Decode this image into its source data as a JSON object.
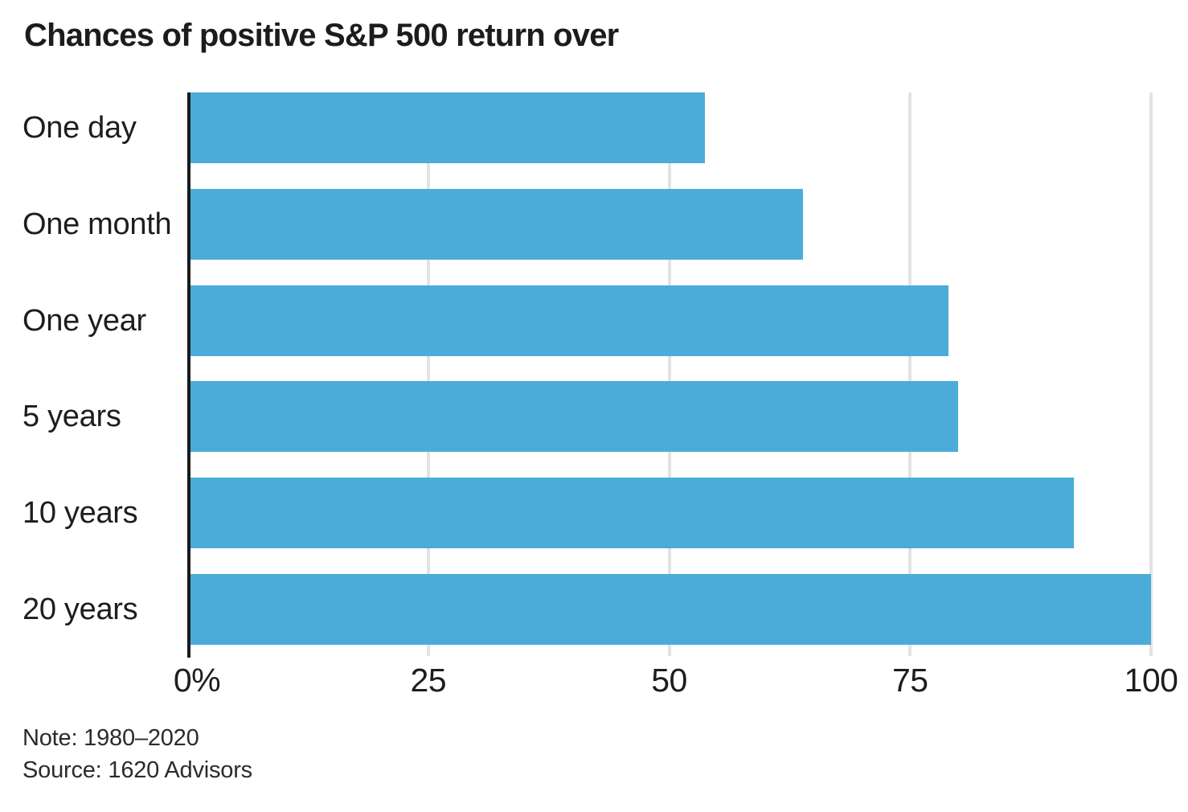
{
  "title": "Chances of positive S&P 500 return over",
  "chart_data": {
    "type": "bar",
    "orientation": "horizontal",
    "title": "Chances of positive S&P 500 return over",
    "categories": [
      "One day",
      "One month",
      "One year",
      "5 years",
      "10 years",
      "20 years"
    ],
    "values": [
      53.7,
      63.9,
      79,
      80,
      92,
      100
    ],
    "unit": "percent",
    "xlim": [
      0,
      100
    ],
    "x_ticks": [
      {
        "label": "0%",
        "value": 0
      },
      {
        "label": "25",
        "value": 25
      },
      {
        "label": "50",
        "value": 50
      },
      {
        "label": "75",
        "value": 75
      },
      {
        "label": "100",
        "value": 100
      }
    ],
    "grid": true,
    "legend": "none",
    "bar_color": "#4BACD9",
    "gridline_color": "#e3e3e3",
    "axis_color": "#1a1a1a"
  },
  "footer": {
    "note": "Note: 1980–2020",
    "source": "Source: 1620 Advisors"
  }
}
